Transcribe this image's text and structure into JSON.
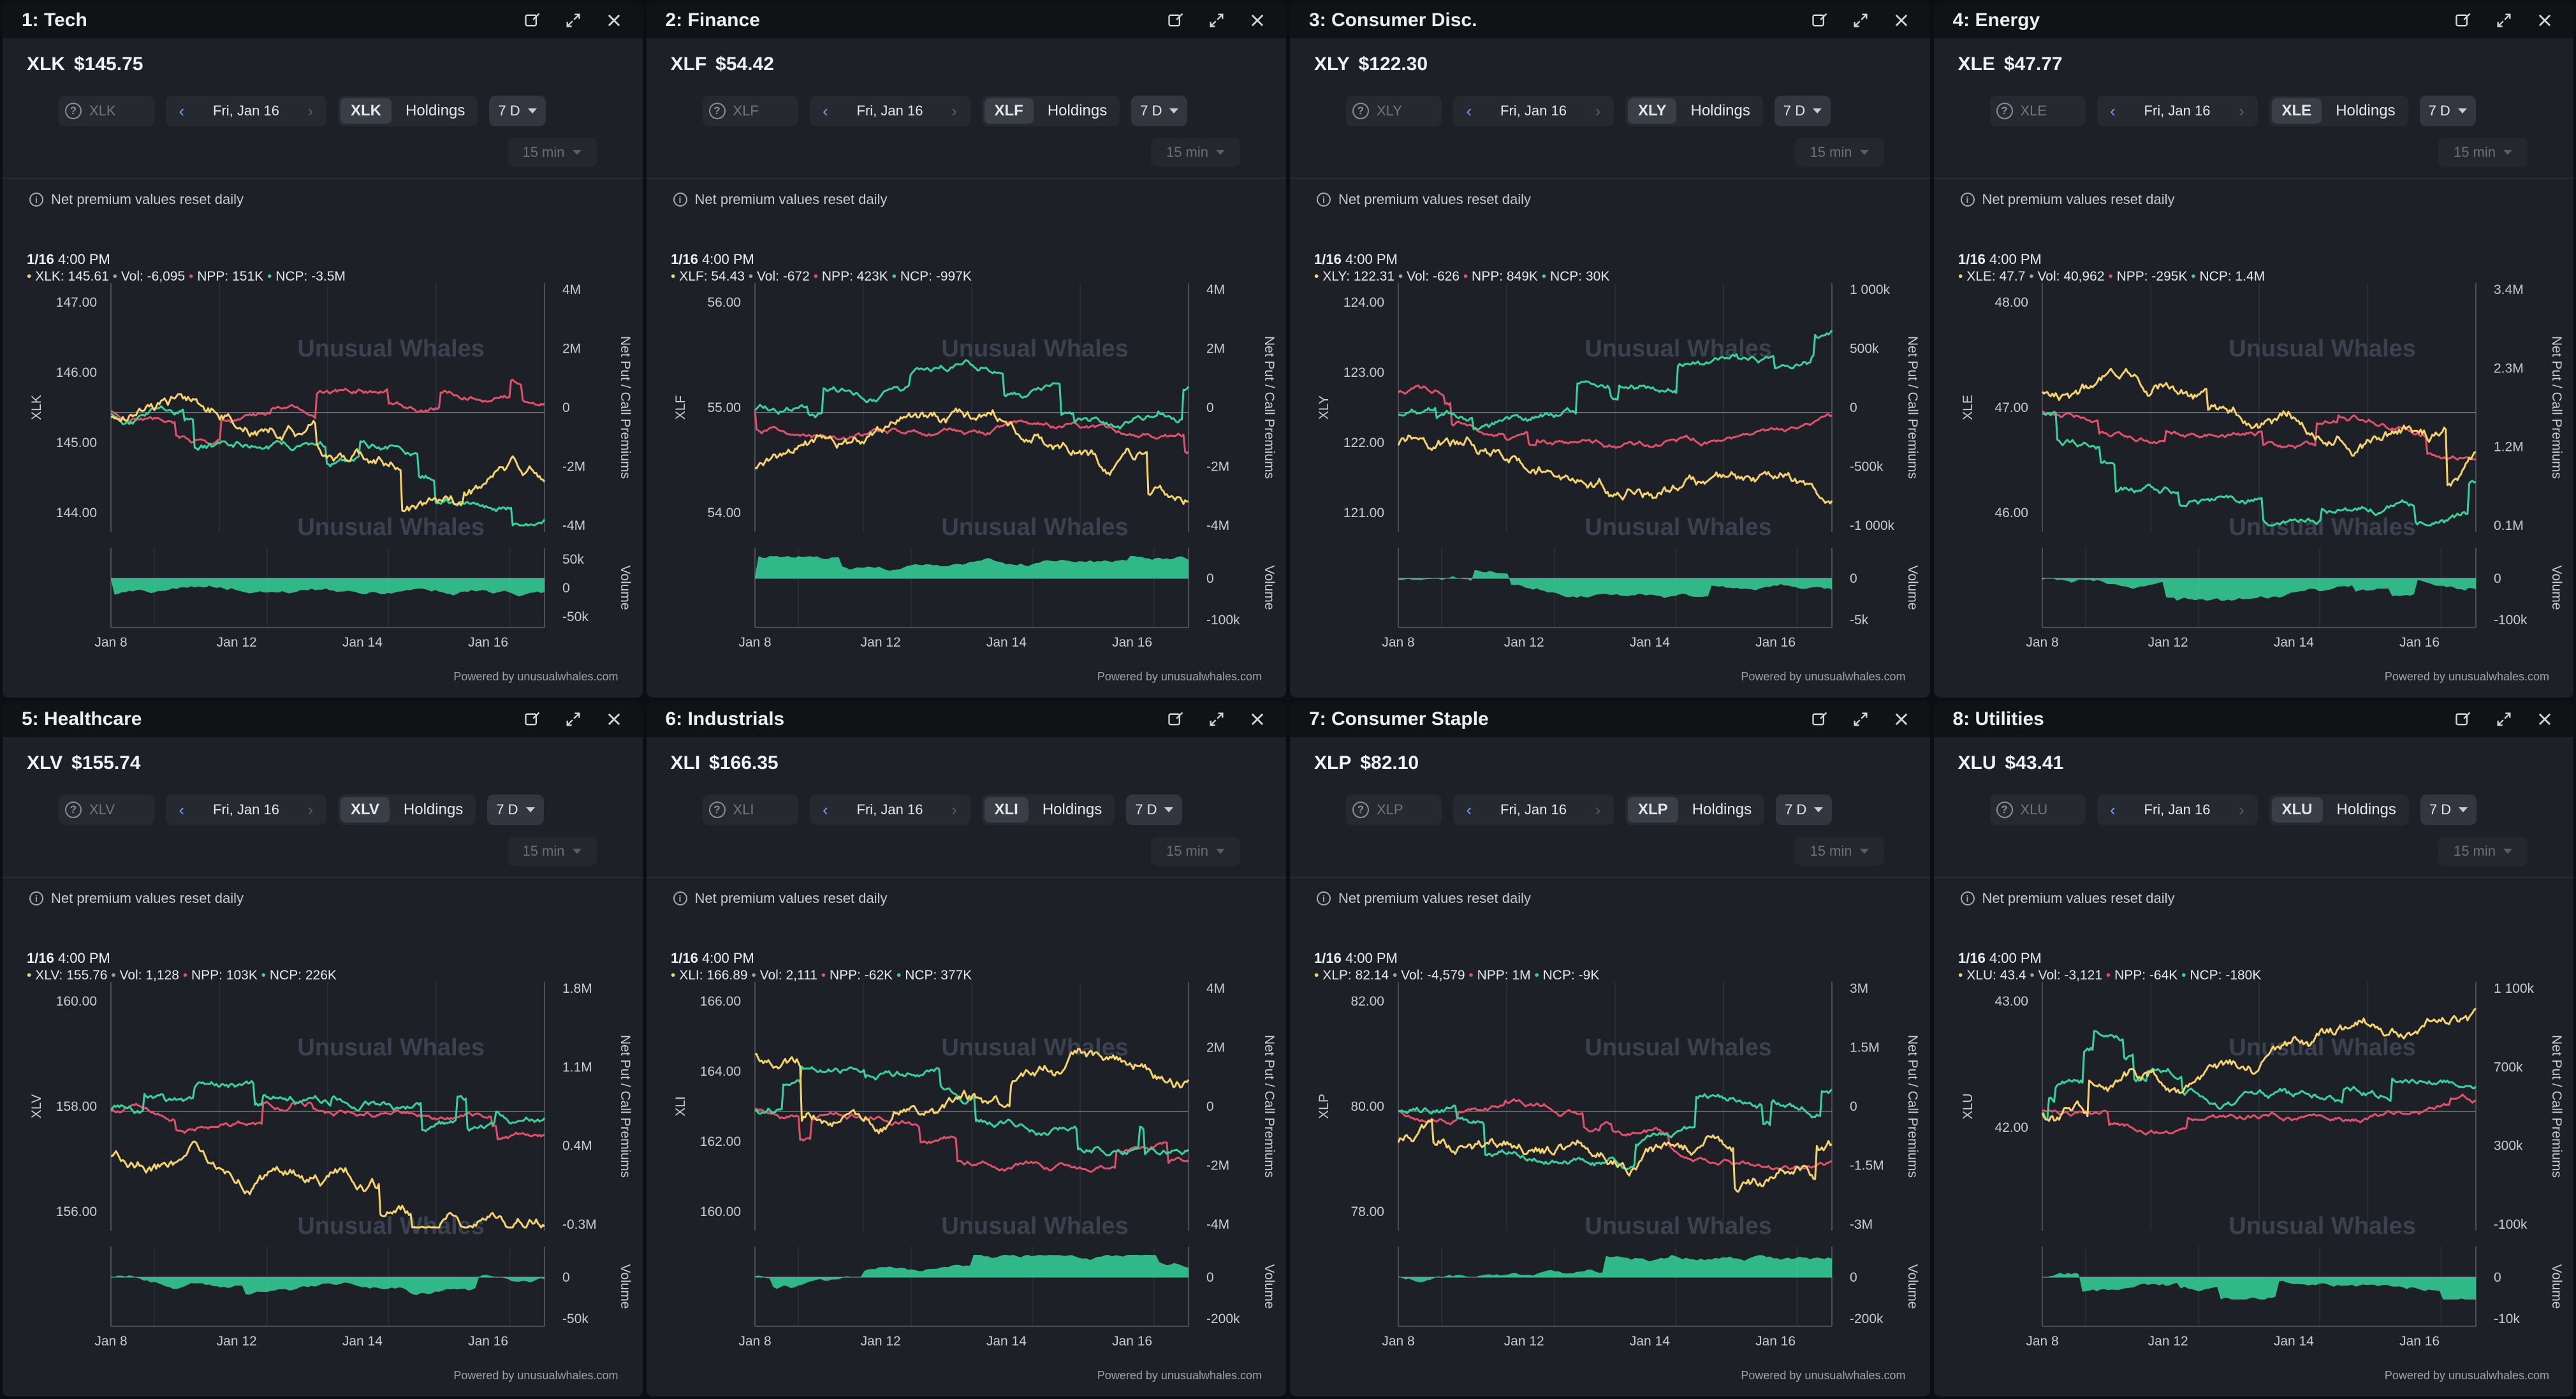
{
  "x_ticks": [
    "Jan 8",
    "Jan 12",
    "Jan 14",
    "Jan 16"
  ],
  "watermark": "Unusual Whales",
  "y2_title": "Net Put / Call Premiums",
  "vol_title": "Volume",
  "holdings_label": "Holdings",
  "range_label": "7 D",
  "interval_label": "15 min",
  "date_label": "Fri, Jan 16",
  "note": "Net premium values reset daily",
  "powered_by": "Powered by unusualwhales.com",
  "colors": {
    "price": "#f5d36a",
    "npp": "#e0506a",
    "ncp": "#35d39a"
  },
  "panels": [
    {
      "title": "1: Tech",
      "ticker": "XLK",
      "price": "$145.75",
      "tt_head": "1/16",
      "tt_time": "4:00 PM",
      "tt_price": "XLK: 145.61",
      "tt_vol": "Vol: -6,095",
      "tt_npp": "NPP: 151K",
      "tt_ncp": "NCP: -3.5M",
      "y_ticks": [
        "147.00",
        "146.00",
        "145.00",
        "144.00"
      ],
      "y2_ticks": [
        "4M",
        "2M",
        "0",
        "-2M",
        "-4M"
      ],
      "vol_ticks": [
        "50k",
        "0",
        "-50k"
      ]
    },
    {
      "title": "2: Finance",
      "ticker": "XLF",
      "price": "$54.42",
      "tt_head": "1/16",
      "tt_time": "4:00 PM",
      "tt_price": "XLF: 54.43",
      "tt_vol": "Vol: -672",
      "tt_npp": "NPP: 423K",
      "tt_ncp": "NCP: -997K",
      "y_ticks": [
        "56.00",
        "55.00",
        "54.00"
      ],
      "y2_ticks": [
        "4M",
        "2M",
        "0",
        "-2M",
        "-4M"
      ],
      "vol_ticks": [
        "0",
        "-100k"
      ]
    },
    {
      "title": "3: Consumer Disc.",
      "ticker": "XLY",
      "price": "$122.30",
      "tt_head": "1/16",
      "tt_time": "4:00 PM",
      "tt_price": "XLY: 122.31",
      "tt_vol": "Vol: -626",
      "tt_npp": "NPP: 849K",
      "tt_ncp": "NCP: 30K",
      "y_ticks": [
        "124.00",
        "123.00",
        "122.00",
        "121.00"
      ],
      "y2_ticks": [
        "1 000k",
        "500k",
        "0",
        "-500k",
        "-1 000k"
      ],
      "vol_ticks": [
        "0",
        "-5k"
      ]
    },
    {
      "title": "4: Energy",
      "ticker": "XLE",
      "price": "$47.77",
      "tt_head": "1/16",
      "tt_time": "4:00 PM",
      "tt_price": "XLE: 47.7",
      "tt_vol": "Vol: 40,962",
      "tt_npp": "NPP: -295K",
      "tt_ncp": "NCP: 1.4M",
      "y_ticks": [
        "48.00",
        "47.00",
        "46.00"
      ],
      "y2_ticks": [
        "3.4M",
        "2.3M",
        "1.2M",
        "0.1M"
      ],
      "vol_ticks": [
        "0",
        "-100k"
      ]
    },
    {
      "title": "5: Healthcare",
      "ticker": "XLV",
      "price": "$155.74",
      "tt_head": "1/16",
      "tt_time": "4:00 PM",
      "tt_price": "XLV: 155.76",
      "tt_vol": "Vol: 1,128",
      "tt_npp": "NPP: 103K",
      "tt_ncp": "NCP: 226K",
      "y_ticks": [
        "160.00",
        "158.00",
        "156.00"
      ],
      "y2_ticks": [
        "1.8M",
        "1.1M",
        "0.4M",
        "-0.3M"
      ],
      "vol_ticks": [
        "0",
        "-50k"
      ]
    },
    {
      "title": "6: Industrials",
      "ticker": "XLI",
      "price": "$166.35",
      "tt_head": "1/16",
      "tt_time": "4:00 PM",
      "tt_price": "XLI: 166.89",
      "tt_vol": "Vol: 2,111",
      "tt_npp": "NPP: -62K",
      "tt_ncp": "NCP: 377K",
      "y_ticks": [
        "166.00",
        "164.00",
        "162.00",
        "160.00"
      ],
      "y2_ticks": [
        "4M",
        "2M",
        "0",
        "-2M",
        "-4M"
      ],
      "vol_ticks": [
        "0",
        "-200k"
      ]
    },
    {
      "title": "7: Consumer Staple",
      "ticker": "XLP",
      "price": "$82.10",
      "tt_head": "1/16",
      "tt_time": "4:00 PM",
      "tt_price": "XLP: 82.14",
      "tt_vol": "Vol: -4,579",
      "tt_npp": "NPP: 1M",
      "tt_ncp": "NCP: -9K",
      "y_ticks": [
        "82.00",
        "80.00",
        "78.00"
      ],
      "y2_ticks": [
        "3M",
        "1.5M",
        "0",
        "-1.5M",
        "-3M"
      ],
      "vol_ticks": [
        "0",
        "-200k"
      ]
    },
    {
      "title": "8: Utilities",
      "ticker": "XLU",
      "price": "$43.41",
      "tt_head": "1/16",
      "tt_time": "4:00 PM",
      "tt_price": "XLU: 43.4",
      "tt_vol": "Vol: -3,121",
      "tt_npp": "NPP: -64K",
      "tt_ncp": "NCP: -180K",
      "y_ticks": [
        "43.00",
        "42.00"
      ],
      "y2_ticks": [
        "1 100k",
        "700k",
        "300k",
        "-100k"
      ],
      "vol_ticks": [
        "0",
        "-10k"
      ]
    }
  ]
}
